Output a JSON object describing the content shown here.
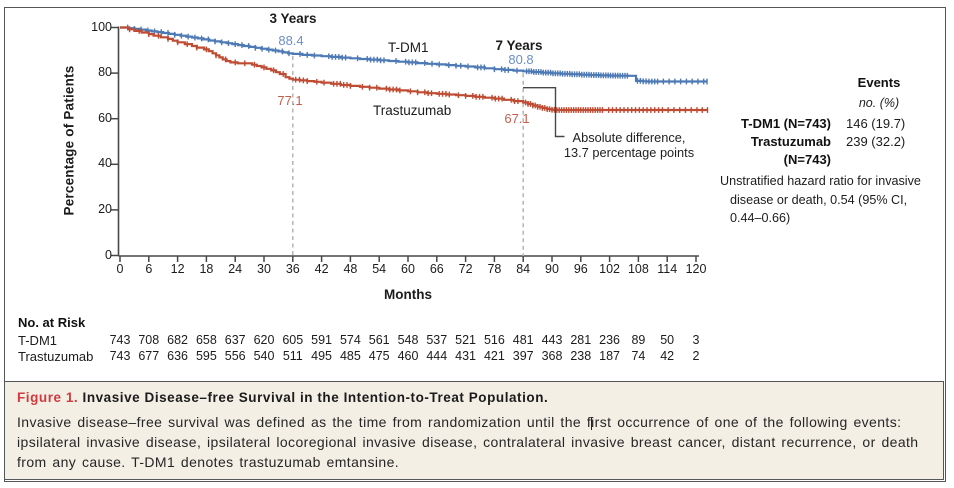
{
  "figure": {
    "caption": {
      "label": "Figure 1.",
      "title": "Invasive Disease–free Survival in the Intention-to-Treat Population.",
      "body_lines": [
        "Invasive disease–free survival was defined as the time from randomization until the first occurrence of one of the following events:",
        "ipsilateral invasive disease, ipsilateral locoregional invasive disease, contralateral invasive breast cancer, distant recurrence, or death",
        "from any cause. T-DM1 denotes trastuzumab emtansine."
      ]
    },
    "events_panel": {
      "header": "Events",
      "subheader": "no. (%)",
      "rows": [
        {
          "label": "T-DM1 (N=743)",
          "label2": "",
          "value": "146 (19.7)"
        },
        {
          "label": "Trastuzumab",
          "label2": "(N=743)",
          "value": "239 (32.2)"
        }
      ],
      "note_lines": [
        "Unstratified hazard ratio for invasive",
        "disease or death, 0.54 (95% CI,",
        "0.44–0.66)"
      ]
    },
    "annotations": {
      "y3_title": "3 Years",
      "y3_tdm1": "88.4",
      "y3_tras": "77.1",
      "y7_title": "7 Years",
      "y7_tdm1": "80.8",
      "y7_tras": "67.1",
      "callout_line1": "Absolute difference,",
      "callout_line2": "13.7 percentage points",
      "series_label_tdm1": "T-DM1",
      "series_label_tras": "Trastuzumab"
    },
    "risk_table": {
      "header": "No. at Risk",
      "rows": [
        {
          "label": "T-DM1",
          "values": [
            743,
            708,
            682,
            658,
            637,
            620,
            605,
            591,
            574,
            561,
            548,
            537,
            521,
            516,
            481,
            443,
            281,
            236,
            89,
            50,
            3
          ]
        },
        {
          "label": "Trastuzumab",
          "values": [
            743,
            677,
            636,
            595,
            556,
            540,
            511,
            495,
            485,
            475,
            460,
            444,
            431,
            421,
            397,
            368,
            238,
            187,
            74,
            42,
            2
          ]
        }
      ]
    }
  },
  "chart_data": {
    "type": "line",
    "title": "",
    "xlabel": "Months",
    "ylabel": "Percentage of Patients",
    "xlim": [
      0,
      120
    ],
    "ylim": [
      0,
      100
    ],
    "x_ticks": [
      0,
      6,
      12,
      18,
      24,
      30,
      36,
      42,
      48,
      54,
      60,
      66,
      72,
      78,
      84,
      90,
      96,
      102,
      108,
      114,
      120
    ],
    "y_ticks": [
      100,
      80,
      60,
      40,
      20,
      0
    ],
    "reference_lines_months": [
      36,
      84
    ],
    "series": [
      {
        "name": "T-DM1",
        "color": "#4d79b5",
        "points": [
          [
            0,
            100
          ],
          [
            1.8,
            99.7
          ],
          [
            3,
            99.4
          ],
          [
            4.2,
            99.1
          ],
          [
            5.4,
            98.7
          ],
          [
            6.6,
            98.3
          ],
          [
            7.8,
            98.0
          ],
          [
            9,
            97.6
          ],
          [
            10.2,
            97.2
          ],
          [
            11.4,
            96.8
          ],
          [
            12.6,
            96.4
          ],
          [
            13.8,
            96.0
          ],
          [
            15,
            95.6
          ],
          [
            16.2,
            95.2
          ],
          [
            17.4,
            94.8
          ],
          [
            18.6,
            94.3
          ],
          [
            19.8,
            93.9
          ],
          [
            21,
            93.5
          ],
          [
            22.2,
            93.1
          ],
          [
            23.4,
            92.7
          ],
          [
            24.6,
            92.3
          ],
          [
            25.8,
            91.9
          ],
          [
            27,
            91.5
          ],
          [
            28.2,
            91.1
          ],
          [
            29.4,
            90.7
          ],
          [
            30.6,
            90.3
          ],
          [
            31.8,
            89.9
          ],
          [
            33,
            89.5
          ],
          [
            34,
            89.1
          ],
          [
            35,
            88.7
          ],
          [
            36,
            88.4
          ],
          [
            38,
            88.0
          ],
          [
            40,
            87.7
          ],
          [
            42,
            87.4
          ],
          [
            44,
            87.1
          ],
          [
            46,
            86.8
          ],
          [
            48,
            86.5
          ],
          [
            50,
            86.2
          ],
          [
            52,
            85.9
          ],
          [
            54,
            85.6
          ],
          [
            56,
            85.3
          ],
          [
            58,
            85.0
          ],
          [
            60,
            84.7
          ],
          [
            62,
            84.4
          ],
          [
            64,
            84.1
          ],
          [
            66,
            83.8
          ],
          [
            68,
            83.5
          ],
          [
            70,
            83.2
          ],
          [
            72,
            82.9
          ],
          [
            74,
            82.5
          ],
          [
            76,
            82.1
          ],
          [
            78,
            81.7
          ],
          [
            80,
            81.4
          ],
          [
            82,
            81.1
          ],
          [
            84,
            80.8
          ],
          [
            86,
            80.5
          ],
          [
            88,
            80.2
          ],
          [
            90,
            79.9
          ],
          [
            92,
            79.7
          ],
          [
            94,
            79.5
          ],
          [
            96,
            79.3
          ],
          [
            98,
            79.15
          ],
          [
            100,
            79.0
          ],
          [
            102,
            78.9
          ],
          [
            104,
            78.85
          ],
          [
            106,
            78.8
          ],
          [
            107.5,
            76.6
          ],
          [
            109,
            76.4
          ],
          [
            110,
            76.3
          ],
          [
            122.3,
            76.3
          ]
        ],
        "censor_months": [
          1.6,
          3,
          4.4,
          5.8,
          7.2,
          8.6,
          10,
          11.4,
          12.8,
          14.2,
          15.6,
          17,
          18.4,
          19.8,
          21.2,
          22.6,
          24,
          25.4,
          26.8,
          28.2,
          29.6,
          31,
          32.4,
          33.8,
          35.2,
          37.5,
          39,
          40.5,
          43.5,
          44.2,
          44.9,
          45.6,
          46.3,
          47,
          49.5,
          51.5,
          52.2,
          52.9,
          53.6,
          54.3,
          55,
          57.5,
          59.5,
          60.2,
          60.9,
          61.6,
          63.5,
          65,
          66.5,
          68.5,
          70,
          71,
          72.5,
          74.5,
          75.2,
          75.9,
          78,
          79.5,
          80.2,
          80.9,
          82.7,
          84.7,
          85.2,
          85.7,
          86.2,
          86.7,
          87.2,
          87.7,
          88.2,
          88.7,
          89.2,
          89.7,
          90.2,
          90.7,
          91.2,
          91.7,
          92.2,
          92.7,
          93.2,
          93.7,
          94.2,
          94.7,
          95.2,
          95.7,
          96.2,
          96.7,
          97.2,
          97.7,
          98.2,
          98.7,
          99.2,
          99.7,
          100.2,
          100.7,
          101.2,
          101.7,
          102.2,
          102.7,
          103.2,
          103.7,
          104.2,
          104.7,
          105.2,
          105.7,
          107.8,
          108.4,
          109,
          109.6,
          110.2,
          110.8,
          111.4,
          112,
          113.2,
          114.4,
          115.6,
          116.8,
          118,
          119.2,
          120.4,
          121.6,
          122.3
        ]
      },
      {
        "name": "Trastuzumab",
        "color": "#bf4b33",
        "points": [
          [
            0,
            100
          ],
          [
            1.8,
            99.2
          ],
          [
            3,
            98.5
          ],
          [
            4.5,
            97.8
          ],
          [
            6,
            97.1
          ],
          [
            7,
            96.4
          ],
          [
            8.5,
            95.7
          ],
          [
            10,
            95.0
          ],
          [
            11,
            94.2
          ],
          [
            12,
            93.5
          ],
          [
            13.5,
            92.7
          ],
          [
            15,
            91.9
          ],
          [
            16,
            91.2
          ],
          [
            17.5,
            90.4
          ],
          [
            18.5,
            89.6
          ],
          [
            19.3,
            88.7
          ],
          [
            20,
            87.8
          ],
          [
            20.7,
            86.9
          ],
          [
            21.4,
            86.0
          ],
          [
            22.2,
            85.3
          ],
          [
            23,
            84.7
          ],
          [
            24.5,
            84.3
          ],
          [
            27.5,
            83.7
          ],
          [
            28.5,
            83.1
          ],
          [
            29.5,
            82.5
          ],
          [
            30.5,
            81.9
          ],
          [
            31.5,
            81.2
          ],
          [
            32.5,
            80.4
          ],
          [
            33.3,
            79.6
          ],
          [
            34.5,
            78.2
          ],
          [
            35.3,
            77.6
          ],
          [
            36,
            77.1
          ],
          [
            37.5,
            76.8
          ],
          [
            39,
            76.5
          ],
          [
            40.5,
            76.2
          ],
          [
            42,
            75.8
          ],
          [
            44,
            75.3
          ],
          [
            46,
            74.8
          ],
          [
            48,
            74.4
          ],
          [
            50,
            74.0
          ],
          [
            52,
            73.6
          ],
          [
            54,
            73.2
          ],
          [
            56,
            72.8
          ],
          [
            58,
            72.4
          ],
          [
            60,
            72.0
          ],
          [
            62,
            71.6
          ],
          [
            64,
            71.2
          ],
          [
            66,
            70.9
          ],
          [
            68,
            70.6
          ],
          [
            70,
            70.3
          ],
          [
            72,
            70.0
          ],
          [
            74,
            69.6
          ],
          [
            76,
            69.2
          ],
          [
            78,
            68.8
          ],
          [
            80,
            68.3
          ],
          [
            82,
            67.7
          ],
          [
            84,
            67.1
          ],
          [
            85,
            66.5
          ],
          [
            86,
            65.8
          ],
          [
            87,
            65.2
          ],
          [
            88,
            64.7
          ],
          [
            89,
            64.2
          ],
          [
            90,
            63.9
          ],
          [
            91,
            63.8
          ],
          [
            122.4,
            63.8
          ]
        ],
        "censor_months": [
          2,
          4,
          6,
          8,
          10,
          12,
          14,
          16,
          18,
          20,
          22,
          24,
          26,
          28,
          30,
          32,
          34,
          36.6,
          37.4,
          38.2,
          39,
          41,
          42.5,
          44.5,
          45.2,
          45.9,
          46.6,
          47.3,
          48,
          50.5,
          52,
          53.5,
          55.5,
          56.2,
          56.9,
          57.6,
          58.3,
          60.5,
          62,
          63.5,
          64.2,
          64.9,
          66.5,
          67.2,
          67.9,
          68.6,
          70.5,
          72,
          73.5,
          74.2,
          74.9,
          75.6,
          77.5,
          78.2,
          78.9,
          79.6,
          81.5,
          82.2,
          82.9,
          84.5,
          85,
          85.5,
          86,
          86.5,
          87,
          87.5,
          88,
          88.5,
          89,
          89.5,
          90,
          90.5,
          91,
          91.5,
          92,
          92.5,
          93,
          93.5,
          94,
          94.5,
          95,
          95.5,
          96,
          96.5,
          97,
          97.5,
          98,
          98.5,
          99,
          99.5,
          100,
          100.5,
          101.8,
          102.6,
          103.4,
          104.2,
          105,
          105.8,
          106.6,
          107.4,
          108.2,
          109,
          109.8,
          110.6,
          111.4,
          112.2,
          113,
          114.2,
          115.4,
          116.6,
          117.8,
          119,
          120.2,
          121.3,
          122.4
        ]
      }
    ]
  },
  "colors": {
    "blue": "#4d79b5",
    "red": "#bf4b33",
    "value_blue": "#6d8fc4",
    "value_red": "#c55f4c",
    "axis": "#47484a",
    "dashed": "#b5b5b3",
    "figure_label": "#d03a3f",
    "caption_bg": "#f3efe5"
  }
}
